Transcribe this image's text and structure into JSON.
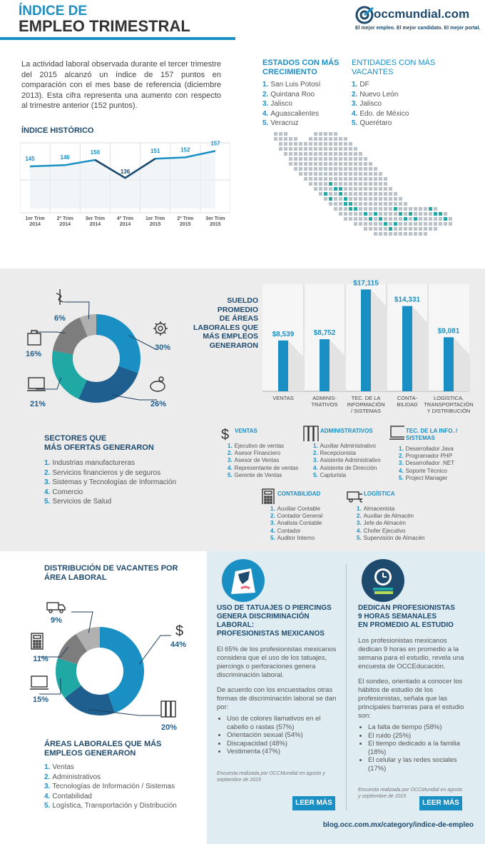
{
  "header": {
    "title_line1": "ÍNDICE DE",
    "title_line2": "EMPLEO TRIMESTRAL",
    "brand": "occmundial.com",
    "tagline": "El mejor empleo. El mejor candidato. El mejor portal."
  },
  "intro": {
    "text": "La actividad laboral observada durante el tercer trimestre del 2015 alcanzó un índice de 157 puntos en comparación con el mes base de referencia (diciembre 2013). Esta cifra representa una aumento con respecto al trimestre anterior (152 puntos)."
  },
  "historic": {
    "heading": "ÍNDICE HISTÓRICO"
  },
  "chart_data": [
    {
      "type": "line",
      "title": "ÍNDICE HISTÓRICO",
      "categories": [
        "1er Trim 2014",
        "2º Trim 2014",
        "3er Trim 2014",
        "4º Trim 2014",
        "1er Trim 2015",
        "2º Trim 2015",
        "3er Trim 2015"
      ],
      "category_lines": [
        [
          "1er Trim",
          "2014"
        ],
        [
          "2º Trim",
          "2014"
        ],
        [
          "3er Trim",
          "2014"
        ],
        [
          "4º Trim",
          "2014"
        ],
        [
          "1er Trim",
          "2015"
        ],
        [
          "2º Trim",
          "2015"
        ],
        [
          "3er Trim",
          "2015"
        ]
      ],
      "values": [
        145,
        146,
        150,
        136,
        151,
        152,
        157
      ],
      "ylim": [
        120,
        170
      ]
    },
    {
      "type": "bar",
      "title": "SUELDO PROMEDIO DE ÁREAS LABORALES QUE MÁS EMPLEOS GENERARON",
      "categories": [
        "VENTAS",
        "ADMINIS-TRATIVOS",
        "TEC. DE LA INFORMACIÓN / SISTEMAS",
        "CONTA-BILIDAD",
        "LOGÍSTICA, TRANSPORTACIÓN Y DISTRIBUCIÓN"
      ],
      "category_lines": [
        [
          "VENTAS"
        ],
        [
          "ADMINIS-",
          "TRATIVOS"
        ],
        [
          "TEC. DE LA",
          "INFORMACIÓN",
          "/ SISTEMAS"
        ],
        [
          "CONTA-",
          "BILIDAD"
        ],
        [
          "LOGÍSTICA,",
          "TRANSPORTACIÓN",
          "Y DISTRIBUCIÓN"
        ]
      ],
      "values": [
        8539,
        8752,
        17115,
        14331,
        9081
      ],
      "value_labels": [
        "$8,539",
        "$8,752",
        "$17,115",
        "$14,331",
        "$9,081"
      ],
      "ylim": [
        0,
        18000
      ]
    },
    {
      "type": "pie",
      "title": "SECTORES QUE MÁS OFERTAS GENERARON",
      "labels": [
        "Industrias manufactureras",
        "Servicios financieros y de seguros",
        "Sistemas y Tecnologías de Información",
        "Comercio",
        "Servicios de Salud"
      ],
      "values": [
        30,
        26,
        21,
        16,
        6
      ],
      "value_labels": [
        "30%",
        "26%",
        "21%",
        "16%",
        "6%"
      ],
      "icons": [
        "gear-icon",
        "piggy-bank-icon",
        "laptop-icon",
        "shopping-bag-icon",
        "caduceus-icon"
      ],
      "colors": [
        "#1a8fc4",
        "#1e5f8f",
        "#1fa8a4",
        "#7d7d7d",
        "#b0b0b0"
      ]
    },
    {
      "type": "pie",
      "title": "DISTRIBUCIÓN DE VACANTES POR ÁREA LABORAL",
      "labels": [
        "Ventas",
        "Administrativos",
        "Tecnologías de Información / Sistemas",
        "Contabilidad",
        "Logística, Transportación y Distribución"
      ],
      "values": [
        44,
        20,
        15,
        11,
        9
      ],
      "value_labels": [
        "44%",
        "20%",
        "15%",
        "11%",
        "9%"
      ],
      "icons": [
        "dollar-icon",
        "binders-icon",
        "monitor-icon",
        "calculator-icon",
        "truck-icon"
      ],
      "colors": [
        "#1a8fc4",
        "#1e5f8f",
        "#1fa8a4",
        "#7d7d7d",
        "#b0b0b0"
      ]
    }
  ],
  "states_growth": {
    "heading_line1": "ESTADOS CON MÁS",
    "heading_line2": "CRECIMIENTO",
    "items": [
      "San Luis Potosí",
      "Quintana Roo",
      "Jalisco",
      "Aguascalientes",
      "Veracruz"
    ]
  },
  "entities_vacancies": {
    "heading_line1": "ENTIDADES CON MÁS",
    "heading_line2": "VACANTES",
    "items": [
      "DF",
      "Nuevo León",
      "Jalisco",
      "Edo. de México",
      "Querétaro"
    ]
  },
  "salary": {
    "heading_lines": [
      "SUELDO PROMEDIO",
      "DE ÁREAS",
      "LABORALES QUE",
      "MÁS EMPLEOS",
      "GENERARON"
    ]
  },
  "sectors": {
    "heading_line1": "SECTORES QUE",
    "heading_line2": "MÁS OFERTAS GENERARON"
  },
  "positions": [
    {
      "title": "VENTAS",
      "icon": "dollar-icon",
      "items": [
        "Ejecutivo de ventas",
        "Asesor Financiero",
        "Asesor de Ventas",
        "Representante de ventas",
        "Gerente de Ventas"
      ]
    },
    {
      "title": "ADMINISTRATIVOS",
      "icon": "binders-icon",
      "items": [
        "Auxiliar Administrativo",
        "Recepcionista",
        "Asistente Administrativo",
        "Asistente de Dirección",
        "Capturista"
      ]
    },
    {
      "title_line1": "TEC. DE LA INFO. /",
      "title_line2": "SISTEMAS",
      "icon": "monitor-icon",
      "items": [
        "Desarrollador Java",
        "Programador PHP",
        "Desarrollador .NET",
        "Soporte Técnico",
        "Project Manager"
      ]
    },
    {
      "title": "CONTABILIDAD",
      "icon": "calculator-icon",
      "items": [
        "Auxiliar Contable",
        "Contador General",
        "Analista Contable",
        "Contador",
        "Auditor Interno"
      ]
    },
    {
      "title": "LOGÍSTICA",
      "icon": "truck-icon",
      "items": [
        "Almacenista",
        "Auxiliar de Almacén",
        "Jefe de Almacén",
        "Chofer Ejecutivo",
        "Supervisión de Almacén"
      ]
    }
  ],
  "distribution": {
    "heading_line1": "DISTRIBUCIÓN DE VACANTES POR",
    "heading_line2": "ÁREA LABORAL",
    "areas_heading_line1": "ÁREAS LABORALES QUE MÁS",
    "areas_heading_line2": "EMPLEOS GENERARON",
    "areas": [
      "Ventas",
      "Administrativos",
      "Tecnologías de Información / Sistemas",
      "Contabilidad",
      "Logística, Transportación y Distribución"
    ]
  },
  "tattoo": {
    "heading_lines": [
      "USO DE TATUAJES O PIERCINGS",
      "GENERA DISCRIMINACIÓN LABORAL:",
      "PROFESIONISTAS MEXICANOS"
    ],
    "p1": "El 65% de los profesionistas mexicanos considera que el uso de los tatuajes, piercings o perforaciones genera discriminación laboral.",
    "p2": "De acuerdo con los encuestados otras formas de discriminación laboral se dan por:",
    "bullets": [
      "Uso de colores llamativos en el cabello o rastas (57%)",
      "Orientación sexual (54%)",
      "Discapacidad (48%)",
      "Vestimenta (47%)"
    ],
    "note": "Encuesta realizada por OCCMundial en agosto y septiembre de 2015",
    "button": "LEER MÁS"
  },
  "study": {
    "heading_lines": [
      "DEDICAN PROFESIONISTAS",
      "9 HORAS SEMANALES",
      "EN PROMEDIO AL ESTUDIO"
    ],
    "p1": "Los profesionistas mexicanos dedican 9 horas en promedio a la semana para el estudio, revela una encuesta de OCCEducación.",
    "p2": "El sondeo, orientado a conocer los hábitos de estudio de los profesionistas, señala que las principales barreras para el estudio son:",
    "bullets": [
      "La falta de tiempo (58%)",
      "El ruido (25%)",
      "El tiempo dedicado a la familia (18%)",
      "El celular y las redes sociales (17%)"
    ],
    "note": "Encuesta realizada por OCCMundial en agosto y septiembre de 2015",
    "button": "LEER MÁS"
  },
  "footer": {
    "url": "blog.occ.com.mx/category/indice-de-empleo"
  }
}
